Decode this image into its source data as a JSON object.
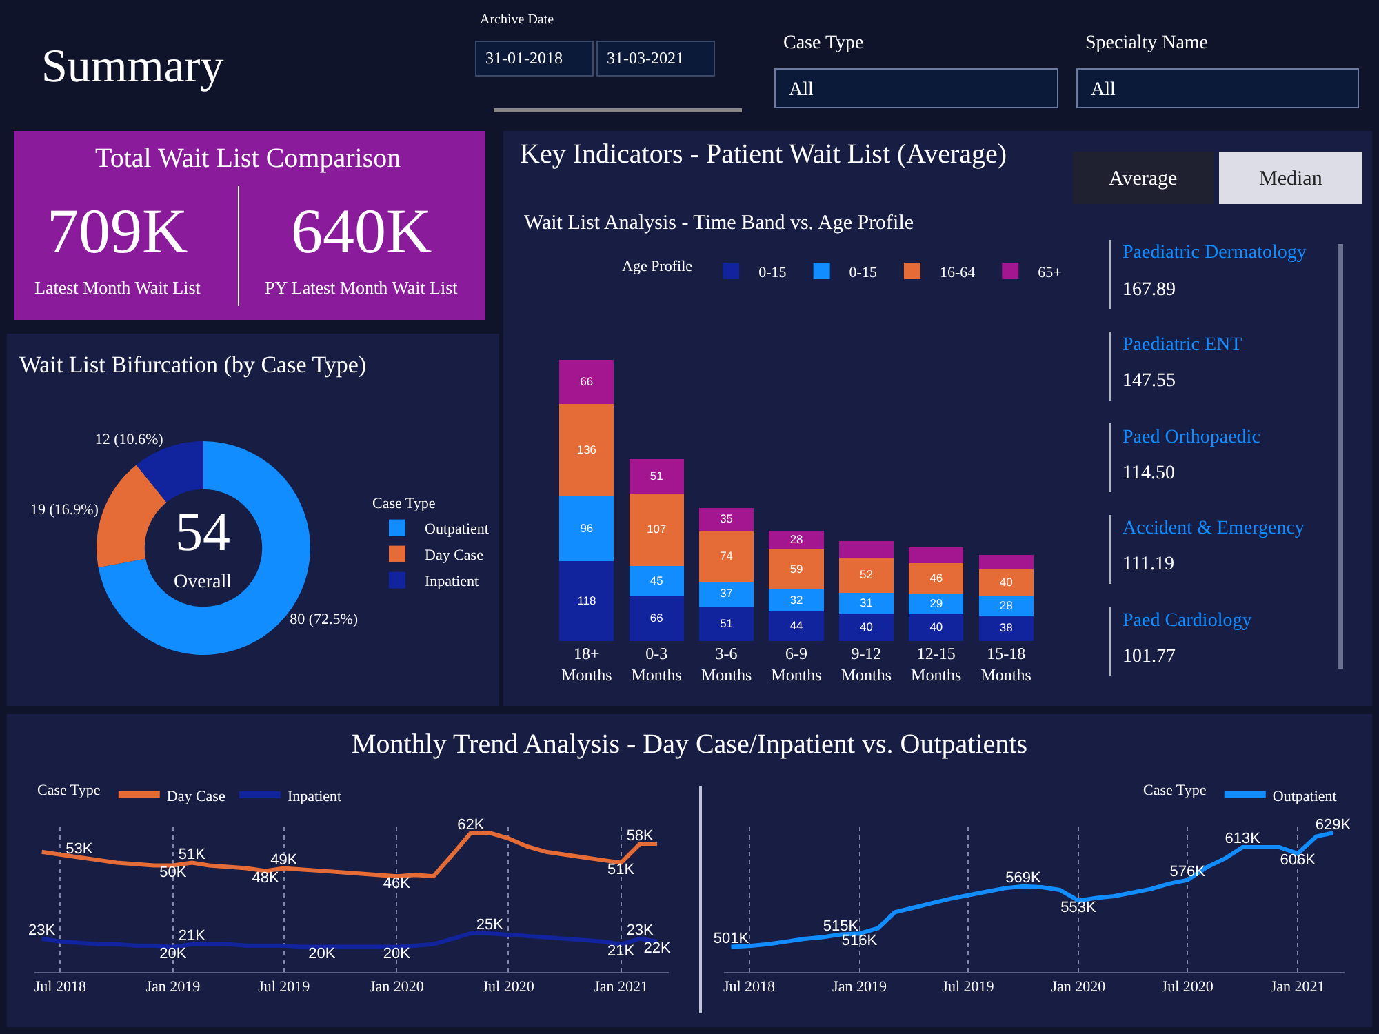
{
  "chart_data": [
    {
      "type": "other",
      "title": "Summary",
      "annotations": [
        "Archive Date",
        "31-01-2018",
        "31-03-2021",
        "Case Type",
        "All",
        "Specialty Name",
        "All"
      ]
    },
    {
      "type": "other",
      "title": "Total Wait List Comparison",
      "annotations": [
        "709K",
        "Latest Month Wait List",
        "640K",
        "PY Latest Month Wait List"
      ]
    },
    {
      "type": "donut",
      "title": "Wait List Bifurcation (by Case Type)",
      "legend_title": "Case Type",
      "legend": "right",
      "categories": [
        "Outpatient",
        "Day Case",
        "Inpatient"
      ],
      "values": [
        80,
        19,
        12
      ],
      "colors": [
        "#118dff",
        "#e66c37",
        "#12239e"
      ],
      "value_labels": [
        "80 (72.5%)",
        "19 (16.9%)",
        "12 (10.6%)"
      ],
      "annotations": [
        "54",
        "Overall"
      ]
    },
    {
      "type": "bar",
      "stacked": true,
      "title": "Key Indicators - Patient Wait List (Average)",
      "subtitle": "Wait List Analysis - Time Band vs. Age Profile",
      "legend_title": "Age Profile",
      "legend": "top right",
      "categories": [
        "18+ Months",
        "0-3 Months",
        "3-6 Months",
        "6-9 Months",
        "9-12 Months",
        "12-15 Months",
        "15-18 Months"
      ],
      "series": [
        {
          "name": "0-15",
          "color": "#12239e",
          "values": [
            118,
            66,
            51,
            44,
            40,
            40,
            38
          ],
          "value_labels": [
            "118",
            "66",
            "51",
            "44",
            "40",
            "40",
            "38"
          ]
        },
        {
          "name": "0-15",
          "color": "#118dff",
          "values": [
            96,
            45,
            37,
            32,
            31,
            29,
            28
          ],
          "value_labels": [
            "96",
            "45",
            "37",
            "32",
            "31",
            "29",
            "28"
          ]
        },
        {
          "name": "16-64",
          "color": "#e66c37",
          "values": [
            136,
            107,
            74,
            59,
            52,
            46,
            40
          ],
          "value_labels": [
            "136",
            "107",
            "74",
            "59",
            "52",
            "46",
            "40"
          ]
        },
        {
          "name": "65+",
          "color": "#a3168f",
          "values": [
            66,
            51,
            35,
            28,
            25,
            23,
            21
          ],
          "value_labels": [
            "66",
            "51",
            "35",
            "28",
            null,
            null,
            null
          ]
        }
      ]
    },
    {
      "type": "other",
      "annotations": [
        "Average",
        "Median",
        "Paediatric Dermatology",
        "167.89",
        "Paediatric ENT",
        "147.55",
        "Paed Orthopaedic",
        "114.50",
        "Accident & Emergency",
        "111.19",
        "Paed Cardiology",
        "101.77"
      ]
    },
    {
      "type": "line",
      "title": "Monthly Trend Analysis - Day Case/Inpatient vs. Outpatients",
      "legend_title": "Case Type",
      "legend": "top left",
      "grid": "x",
      "x": [
        "2018-06",
        "2018-07",
        "2018-08",
        "2018-09",
        "2018-10",
        "2018-11",
        "2018-12",
        "2019-01",
        "2019-02",
        "2019-03",
        "2019-04",
        "2019-05",
        "2019-06",
        "2019-07",
        "2019-08",
        "2019-09",
        "2019-10",
        "2019-11",
        "2019-12",
        "2020-01",
        "2020-02",
        "2020-03",
        "2020-04",
        "2020-05",
        "2020-06",
        "2020-07",
        "2020-08",
        "2020-09",
        "2020-10",
        "2020-11",
        "2020-12",
        "2021-01",
        "2021-02",
        "2021-03"
      ],
      "xlim": [
        "2018-05-20",
        "2021-03-20"
      ],
      "xticks": [
        {
          "value": "2018-07",
          "label": "Jul 2018"
        },
        {
          "value": "2019-01",
          "label": "Jan 2019"
        },
        {
          "value": "2019-07",
          "label": "Jul 2019"
        },
        {
          "value": "2020-01",
          "label": "Jan 2020"
        },
        {
          "value": "2020-07",
          "label": "Jul 2020"
        },
        {
          "value": "2021-01",
          "label": "Jan 2021"
        }
      ],
      "series": [
        {
          "name": "Day Case",
          "color": "#e66c37",
          "values": [
            55,
            54,
            53,
            52,
            51,
            50.5,
            50,
            50,
            51,
            50,
            49.5,
            49,
            48,
            49,
            48.5,
            48,
            47.5,
            47,
            46.5,
            46,
            46.5,
            46,
            54,
            62,
            62,
            60,
            57,
            55,
            54,
            53,
            52,
            51,
            58,
            58
          ],
          "value_labels": [
            null,
            null,
            "53K",
            null,
            null,
            null,
            null,
            "50K",
            "51K",
            null,
            null,
            null,
            "48K",
            "49K",
            null,
            null,
            null,
            null,
            null,
            "46K",
            null,
            null,
            null,
            "62K",
            null,
            null,
            null,
            null,
            null,
            null,
            null,
            "51K",
            "58K",
            null
          ]
        },
        {
          "name": "Inpatient",
          "color": "#12239e",
          "values": [
            23,
            22,
            21.5,
            21,
            21,
            20.5,
            20.5,
            20,
            21,
            21,
            21,
            20.5,
            20.5,
            20.5,
            20,
            20,
            20,
            20,
            20,
            20,
            20.5,
            21,
            23,
            25,
            25,
            24.5,
            24,
            23.5,
            23,
            22.5,
            22,
            21,
            23,
            22
          ],
          "value_labels": [
            "23K",
            null,
            null,
            null,
            null,
            null,
            null,
            "20K",
            "21K",
            null,
            null,
            null,
            null,
            null,
            null,
            "20K",
            null,
            null,
            null,
            "20K",
            null,
            null,
            null,
            null,
            "25K",
            null,
            null,
            null,
            null,
            null,
            null,
            "21K",
            "23K",
            "22K"
          ]
        }
      ]
    },
    {
      "type": "line",
      "legend_title": "Case Type",
      "legend": "top right",
      "grid": "x",
      "x": [
        "2018-06",
        "2018-07",
        "2018-08",
        "2018-09",
        "2018-10",
        "2018-11",
        "2018-12",
        "2019-01",
        "2019-02",
        "2019-03",
        "2019-04",
        "2019-05",
        "2019-06",
        "2019-07",
        "2019-08",
        "2019-09",
        "2019-10",
        "2019-11",
        "2019-12",
        "2020-01",
        "2020-02",
        "2020-03",
        "2020-04",
        "2020-05",
        "2020-06",
        "2020-07",
        "2020-08",
        "2020-09",
        "2020-10",
        "2020-11",
        "2020-12",
        "2021-01",
        "2021-02",
        "2021-03"
      ],
      "xlim": [
        "2018-05-20",
        "2021-03-20"
      ],
      "xticks": [
        {
          "value": "2018-07",
          "label": "Jul 2018"
        },
        {
          "value": "2019-01",
          "label": "Jan 2019"
        },
        {
          "value": "2019-07",
          "label": "Jul 2019"
        },
        {
          "value": "2020-01",
          "label": "Jan 2020"
        },
        {
          "value": "2020-07",
          "label": "Jul 2020"
        },
        {
          "value": "2021-01",
          "label": "Jan 2021"
        }
      ],
      "series": [
        {
          "name": "Outpatient",
          "color": "#118dff",
          "values": [
            501,
            502,
            504,
            507,
            510,
            512,
            515,
            516,
            522,
            540,
            545,
            550,
            555,
            559,
            563,
            567,
            569,
            568,
            565,
            553,
            556,
            558,
            562,
            566,
            572,
            576,
            590,
            600,
            613,
            613,
            613,
            606,
            625,
            629
          ],
          "value_labels": [
            "501K",
            null,
            null,
            null,
            null,
            null,
            "515K",
            "516K",
            null,
            null,
            null,
            null,
            null,
            null,
            null,
            null,
            "569K",
            null,
            null,
            "553K",
            null,
            null,
            null,
            null,
            null,
            "576K",
            null,
            null,
            "613K",
            null,
            null,
            "606K",
            null,
            "629K"
          ]
        }
      ]
    }
  ]
}
